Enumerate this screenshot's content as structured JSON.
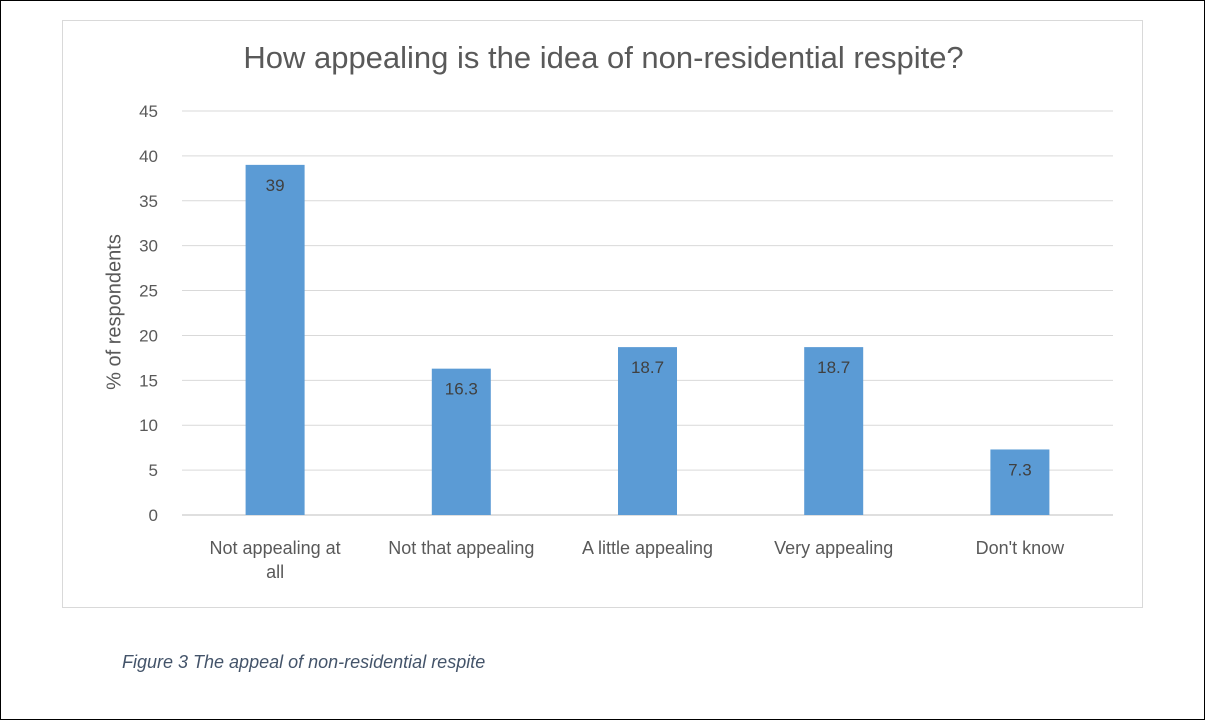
{
  "chart_data": {
    "type": "bar",
    "title": "How appealing is the idea of non-residential respite?",
    "xlabel": "",
    "ylabel": "% of respondents",
    "categories": [
      "Not appealing at all",
      "Not that appealing",
      "A little appealing",
      "Very appealing",
      "Don't know"
    ],
    "category_lines": [
      [
        "Not appealing at",
        "all"
      ],
      [
        "Not that appealing"
      ],
      [
        "A little appealing"
      ],
      [
        "Very appealing"
      ],
      [
        "Don't know"
      ]
    ],
    "values": [
      39,
      16.3,
      18.7,
      18.7,
      7.3
    ],
    "data_labels": [
      "39",
      "16.3",
      "18.7",
      "18.7",
      "7.3"
    ],
    "ylim": [
      0,
      45
    ],
    "yticks": [
      0,
      5,
      10,
      15,
      20,
      25,
      30,
      35,
      40,
      45
    ],
    "grid": true,
    "legend": "none",
    "bar_color": "#5b9bd5"
  },
  "caption": "Figure 3 The appeal of non-residential respite"
}
